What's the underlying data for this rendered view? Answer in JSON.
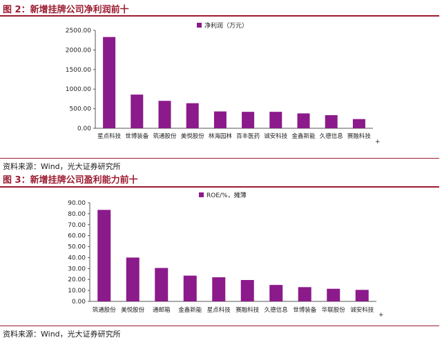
{
  "figures": [
    {
      "title": "图 2：新增挂牌公司净利润前十",
      "source": "资料来源：Wind，光大证券研究所"
    },
    {
      "title": "图 3：新增挂牌公司盈利能力前十",
      "source": "资料来源：Wind，光大证券研究所"
    }
  ],
  "colors": {
    "bar": "#8b1a8b",
    "title": "#9b1b30",
    "axis": "#555555"
  },
  "chart_data": [
    {
      "type": "bar",
      "title": "",
      "legend": "净利润（万元）",
      "legend_position": "top-center",
      "grid": false,
      "categories": [
        "星点科技",
        "世博装备",
        "筑通股份",
        "美悦股份",
        "林海园林",
        "百丰医药",
        "诚安科技",
        "金鑫新能",
        "久德信息",
        "赛融科技"
      ],
      "values": [
        2330,
        860,
        700,
        640,
        430,
        420,
        420,
        380,
        335,
        235
      ],
      "yticks": [
        "0.00",
        "500.00",
        "1000.00",
        "1500.00",
        "2000.00",
        "2500.00"
      ],
      "ylim": [
        0,
        2500
      ]
    },
    {
      "type": "bar",
      "title": "",
      "legend": "ROE/%，摊薄",
      "legend_position": "top-center",
      "grid": false,
      "categories": [
        "筑通股份",
        "美悦股份",
        "通邮箱",
        "金鑫新能",
        "星点科技",
        "赛融科技",
        "久德信息",
        "世博装备",
        "华联股份",
        "诚安科技"
      ],
      "values": [
        83.5,
        40,
        30.5,
        23.5,
        22,
        19.5,
        15,
        13,
        11.5,
        10.5
      ],
      "yticks": [
        "0.00",
        "10.00",
        "20.00",
        "30.00",
        "40.00",
        "50.00",
        "60.00",
        "70.00",
        "80.00",
        "90.00"
      ],
      "ylim": [
        0,
        90
      ]
    }
  ]
}
